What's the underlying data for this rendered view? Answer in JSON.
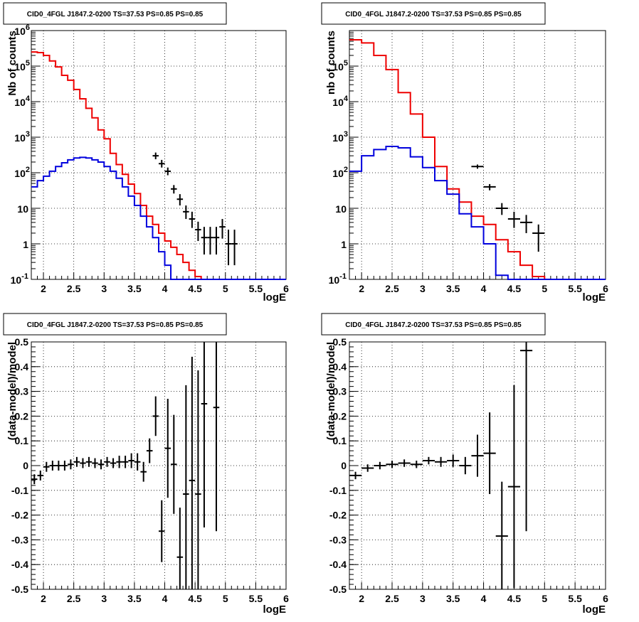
{
  "chart_data": [
    {
      "type": "line",
      "title": "CID0_4FGL J1847.2-0200 TS=37.53 PS=0.85 PS=0.85",
      "xlabel": "logE",
      "ylabel": "Nb of counts",
      "yscale": "log",
      "xlim": [
        1.8,
        6.0
      ],
      "ylim": [
        0.1,
        1000000
      ],
      "grid": true,
      "x_ticks": [
        "2",
        "2.5",
        "3",
        "3.5",
        "4",
        "4.5",
        "5",
        "5.5",
        "6"
      ],
      "y_ticks": [
        "10^-1",
        "1",
        "10",
        "10^2",
        "10^3",
        "10^4",
        "10^5",
        "10^6"
      ],
      "series": [
        {
          "style": "step",
          "color": "#ee0000",
          "bin_width": 0.1,
          "edges_start": 1.8,
          "values": [
            250000,
            240000,
            200000,
            140000,
            95000,
            55000,
            40000,
            22000,
            12000,
            6500,
            3500,
            1600,
            900,
            350,
            170,
            90,
            48,
            26,
            12,
            6,
            3.5,
            2.0,
            1.2,
            0.8,
            0.5,
            0.3,
            0.18,
            0.12,
            0.1,
            0.1,
            0.1,
            0.1,
            0.1,
            0.1,
            0.1,
            0.1,
            0.1,
            0.1,
            0.1,
            0.1,
            0.1,
            0.1
          ]
        },
        {
          "style": "step",
          "color": "#0000dd",
          "bin_width": 0.1,
          "edges_start": 1.8,
          "values": [
            40,
            60,
            80,
            110,
            150,
            190,
            230,
            260,
            270,
            260,
            230,
            200,
            150,
            110,
            70,
            40,
            22,
            12,
            6,
            3,
            1.5,
            0.6,
            0.25,
            0.1,
            0.1,
            0.1,
            0.1,
            0.1,
            0.1,
            0.1,
            0.1,
            0.1,
            0.1,
            0.1,
            0.1,
            0.1,
            0.1,
            0.1,
            0.1,
            0.1,
            0.1,
            0.1
          ]
        },
        {
          "style": "errorbar",
          "color": "#000000",
          "x": [
            3.85,
            3.95,
            4.05,
            4.15,
            4.25,
            4.35,
            4.45,
            4.55,
            4.65,
            4.75,
            4.85,
            4.95,
            5.05,
            5.15
          ],
          "y": [
            300,
            180,
            110,
            35,
            18,
            8,
            5,
            2.5,
            1.5,
            1.5,
            1.5,
            3,
            1,
            1
          ],
          "xerr": 0.05,
          "ylo": [
            240,
            140,
            85,
            26,
            12,
            5,
            2.8,
            1.2,
            0.5,
            0.5,
            0.5,
            1.4,
            0.25,
            0.25
          ],
          "yhi": [
            370,
            230,
            140,
            45,
            25,
            12,
            8,
            4.2,
            3,
            3,
            3,
            5,
            2.5,
            2.5
          ]
        }
      ]
    },
    {
      "type": "line",
      "title": "CID0_4FGL J1847.2-0200 TS=37.53 PS=0.85 PS=0.85",
      "xlabel": "logE",
      "ylabel": "nb of counts",
      "yscale": "log",
      "xlim": [
        1.8,
        6.0
      ],
      "ylim": [
        0.1,
        1000000
      ],
      "grid": true,
      "x_ticks": [
        "2",
        "2.5",
        "3",
        "3.5",
        "4",
        "4.5",
        "5",
        "5.5",
        "6"
      ],
      "y_ticks": [
        "10^-1",
        "1",
        "10",
        "10^2",
        "10^3",
        "10^4",
        "10^5"
      ],
      "series": [
        {
          "style": "step",
          "color": "#ee0000",
          "bin_width": 0.2,
          "edges_start": 1.8,
          "values": [
            550000,
            450000,
            200000,
            80000,
            18000,
            4500,
            1000,
            150,
            35,
            15,
            6,
            3.5,
            1.3,
            0.6,
            0.25,
            0.12,
            0.1,
            0.1,
            0.1,
            0.1,
            0.1
          ]
        },
        {
          "style": "step",
          "color": "#0000dd",
          "bin_width": 0.2,
          "edges_start": 1.8,
          "values": [
            110,
            300,
            450,
            550,
            500,
            280,
            140,
            60,
            25,
            7,
            3,
            1.0,
            0.13,
            0.1,
            0.1,
            0.1,
            0.1,
            0.1,
            0.1,
            0.1,
            0.1
          ]
        },
        {
          "style": "errorbar",
          "color": "#000000",
          "x": [
            3.9,
            4.1,
            4.3,
            4.5,
            4.7,
            4.9
          ],
          "y": [
            150,
            40,
            10,
            5,
            4,
            2
          ],
          "xerr": 0.1,
          "ylo": [
            130,
            32,
            6.5,
            2.8,
            2.0,
            0.6
          ],
          "yhi": [
            170,
            48,
            14,
            8,
            6.5,
            3.5
          ]
        }
      ]
    },
    {
      "type": "scatter",
      "title": "CID0_4FGL J1847.2-0200 TS=37.53 PS=0.85 PS=0.85",
      "xlabel": "logE",
      "ylabel": "(data-model)/model",
      "xlim": [
        1.8,
        6.0
      ],
      "ylim": [
        -0.5,
        0.5
      ],
      "grid": true,
      "x_ticks": [
        "2",
        "2.5",
        "3",
        "3.5",
        "4",
        "4.5",
        "5",
        "5.5",
        "6"
      ],
      "y_ticks": [
        "-0.5",
        "-0.4",
        "-0.3",
        "-0.2",
        "-0.1",
        "0",
        "0.1",
        "0.2",
        "0.3",
        "0.4",
        "0.5"
      ],
      "series": [
        {
          "style": "errorbar",
          "color": "#000000",
          "xerr": 0.05,
          "x": [
            1.85,
            1.95,
            2.05,
            2.15,
            2.25,
            2.35,
            2.45,
            2.55,
            2.65,
            2.75,
            2.85,
            2.95,
            3.05,
            3.15,
            3.25,
            3.35,
            3.45,
            3.55,
            3.65,
            3.75,
            3.85,
            3.95,
            4.05,
            4.15,
            4.25,
            4.35,
            4.45,
            4.55,
            4.65,
            4.85
          ],
          "y": [
            -0.055,
            -0.04,
            -0.005,
            0.0,
            0.0,
            0.0,
            0.005,
            0.015,
            0.01,
            0.015,
            0.01,
            0.005,
            0.015,
            0.01,
            0.015,
            0.015,
            0.02,
            0.015,
            -0.025,
            0.06,
            0.2,
            -0.265,
            0.07,
            0.005,
            -0.37,
            -0.115,
            -0.06,
            -0.115,
            0.25,
            0.235
          ],
          "yerr": [
            0.02,
            0.02,
            0.02,
            0.02,
            0.02,
            0.02,
            0.02,
            0.02,
            0.02,
            0.02,
            0.02,
            0.02,
            0.02,
            0.02,
            0.025,
            0.025,
            0.03,
            0.035,
            0.04,
            0.05,
            0.08,
            0.125,
            0.2,
            0.2,
            0.2,
            0.44,
            0.5,
            0.5,
            0.5,
            0.5
          ]
        }
      ]
    },
    {
      "type": "scatter",
      "title": "CID0_4FGL J1847.2-0200 TS=37.53 PS=0.85 PS=0.85",
      "xlabel": "logE",
      "ylabel": "(data-model)/model",
      "xlim": [
        1.8,
        6.0
      ],
      "ylim": [
        -0.5,
        0.5
      ],
      "grid": true,
      "x_ticks": [
        "2",
        "2.5",
        "3",
        "3.5",
        "4",
        "4.5",
        "5",
        "5.5",
        "6"
      ],
      "y_ticks": [
        "-0.5",
        "-0.4",
        "-0.3",
        "-0.2",
        "-0.1",
        "0",
        "0.1",
        "0.2",
        "0.3",
        "0.4",
        "0.5"
      ],
      "series": [
        {
          "style": "errorbar",
          "color": "#000000",
          "xerr": 0.1,
          "x": [
            1.9,
            2.1,
            2.3,
            2.5,
            2.7,
            2.9,
            3.1,
            3.3,
            3.5,
            3.7,
            3.9,
            4.1,
            4.3,
            4.5,
            4.7
          ],
          "y": [
            -0.04,
            -0.01,
            0.0,
            0.005,
            0.01,
            0.005,
            0.02,
            0.015,
            0.02,
            0.0,
            0.04,
            0.05,
            -0.285,
            -0.085,
            0.465
          ],
          "yerr": [
            0.015,
            0.015,
            0.015,
            0.015,
            0.015,
            0.015,
            0.015,
            0.02,
            0.025,
            0.035,
            0.085,
            0.165,
            0.22,
            0.41,
            0.73
          ]
        }
      ]
    }
  ]
}
